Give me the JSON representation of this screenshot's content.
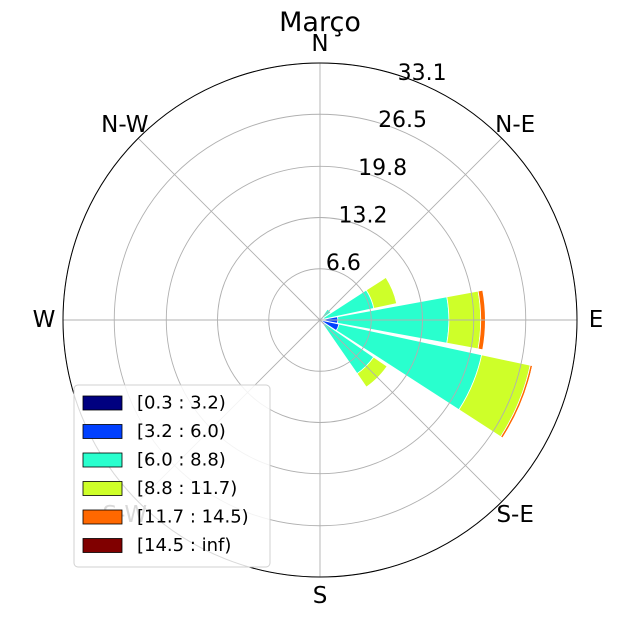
{
  "chart_data": {
    "type": "windrose",
    "title": "Março",
    "directions": [
      "N",
      "N-E",
      "E",
      "S-E",
      "S",
      "S-W",
      "W",
      "N-W"
    ],
    "radial_ticks": [
      "6.6",
      "13.2",
      "19.8",
      "26.5",
      "33.1"
    ],
    "radial_tick_values": [
      6.6,
      13.2,
      19.8,
      26.5,
      33.1
    ],
    "rmax": 33.1,
    "sectors": 16,
    "bins": [
      {
        "label": "[0.3 : 3.2)",
        "color": "#000080"
      },
      {
        "label": "[3.2 : 6.0)",
        "color": "#0040ff"
      },
      {
        "label": "[6.0 : 8.8)",
        "color": "#29ffce"
      },
      {
        "label": "[8.8 : 11.7)",
        "color": "#ceff29"
      },
      {
        "label": "[11.7 : 14.5)",
        "color": "#ff6800"
      },
      {
        "label": "[14.5 : inf)",
        "color": "#800000"
      }
    ],
    "series": [
      {
        "direction": 67.5,
        "values": [
          0.1,
          0.4,
          6.6,
          3.0,
          0,
          0
        ]
      },
      {
        "direction": 90.0,
        "values": [
          0.2,
          2.1,
          14.3,
          4.1,
          0.6,
          0
        ]
      },
      {
        "direction": 112.5,
        "values": [
          0.2,
          2.3,
          18.8,
          6.4,
          0.3,
          0.1
        ]
      },
      {
        "direction": 135.0,
        "values": [
          0.1,
          0.7,
          7.6,
          2.1,
          0,
          0
        ]
      },
      {
        "direction": 45.0,
        "values": [
          0,
          0.3,
          1.4,
          0,
          0,
          0
        ]
      }
    ],
    "legend_position": "lower-left"
  }
}
